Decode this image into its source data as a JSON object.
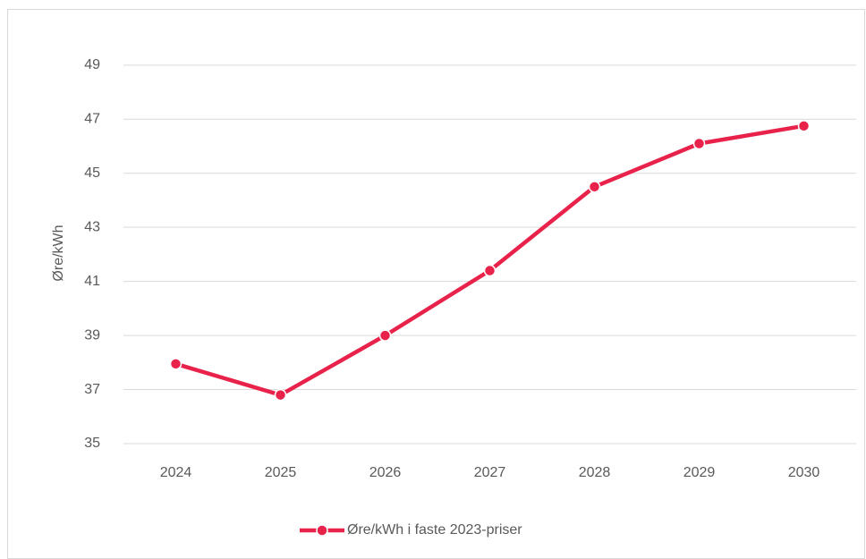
{
  "chart_data": {
    "type": "line",
    "categories": [
      "2024",
      "2025",
      "2026",
      "2027",
      "2028",
      "2029",
      "2030"
    ],
    "y_label": "Øre/kWh",
    "series": [
      {
        "name": "Øre/kWh i faste 2023-priser",
        "color": "#e8224a",
        "values": [
          37.95,
          36.8,
          39.0,
          41.4,
          44.5,
          46.1,
          46.75
        ]
      }
    ],
    "ylim": [
      35,
      50
    ],
    "yticks": [
      35,
      37,
      39,
      41,
      43,
      45,
      47,
      49
    ],
    "grid": true,
    "legend": "bottom"
  }
}
